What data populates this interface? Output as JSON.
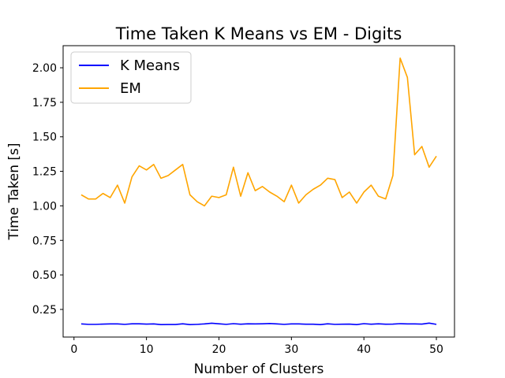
{
  "chart_data": {
    "type": "line",
    "title": "Time Taken K Means vs EM - Digits",
    "xlabel": "Number of Clusters",
    "ylabel": "Time Taken [s]",
    "xlim": [
      -1.5,
      52.5
    ],
    "ylim": [
      0.05,
      2.16
    ],
    "xticks": [
      0,
      10,
      20,
      30,
      40,
      50
    ],
    "yticks": [
      0.25,
      0.5,
      0.75,
      1.0,
      1.25,
      1.5,
      1.75,
      2.0
    ],
    "ytick_labels": [
      "0.25",
      "0.50",
      "0.75",
      "1.00",
      "1.25",
      "1.50",
      "1.75",
      "2.00"
    ],
    "grid": false,
    "legend_position": "top-left",
    "x": [
      1,
      2,
      3,
      4,
      5,
      6,
      7,
      8,
      9,
      10,
      11,
      12,
      13,
      14,
      15,
      16,
      17,
      18,
      19,
      20,
      21,
      22,
      23,
      24,
      25,
      26,
      27,
      28,
      29,
      30,
      31,
      32,
      33,
      34,
      35,
      36,
      37,
      38,
      39,
      40,
      41,
      42,
      43,
      44,
      45,
      46,
      47,
      48,
      49,
      50
    ],
    "series": [
      {
        "name": "K Means",
        "color": "#0000ff",
        "values": [
          0.145,
          0.142,
          0.142,
          0.144,
          0.145,
          0.145,
          0.142,
          0.146,
          0.146,
          0.144,
          0.145,
          0.14,
          0.141,
          0.141,
          0.146,
          0.14,
          0.142,
          0.145,
          0.15,
          0.146,
          0.142,
          0.147,
          0.143,
          0.146,
          0.145,
          0.146,
          0.148,
          0.145,
          0.142,
          0.145,
          0.145,
          0.143,
          0.143,
          0.14,
          0.146,
          0.142,
          0.143,
          0.144,
          0.14,
          0.147,
          0.143,
          0.146,
          0.143,
          0.144,
          0.147,
          0.145,
          0.145,
          0.144,
          0.151,
          0.142
        ]
      },
      {
        "name": "EM",
        "color": "#ffa500",
        "values": [
          1.08,
          1.05,
          1.05,
          1.09,
          1.06,
          1.15,
          1.02,
          1.21,
          1.29,
          1.26,
          1.3,
          1.2,
          1.22,
          1.26,
          1.3,
          1.08,
          1.03,
          1.0,
          1.07,
          1.06,
          1.08,
          1.28,
          1.07,
          1.24,
          1.11,
          1.14,
          1.1,
          1.07,
          1.03,
          1.15,
          1.02,
          1.08,
          1.12,
          1.15,
          1.2,
          1.19,
          1.06,
          1.1,
          1.02,
          1.1,
          1.15,
          1.07,
          1.05,
          1.22,
          2.07,
          1.93,
          1.37,
          1.43,
          1.28,
          1.36
        ]
      }
    ]
  }
}
